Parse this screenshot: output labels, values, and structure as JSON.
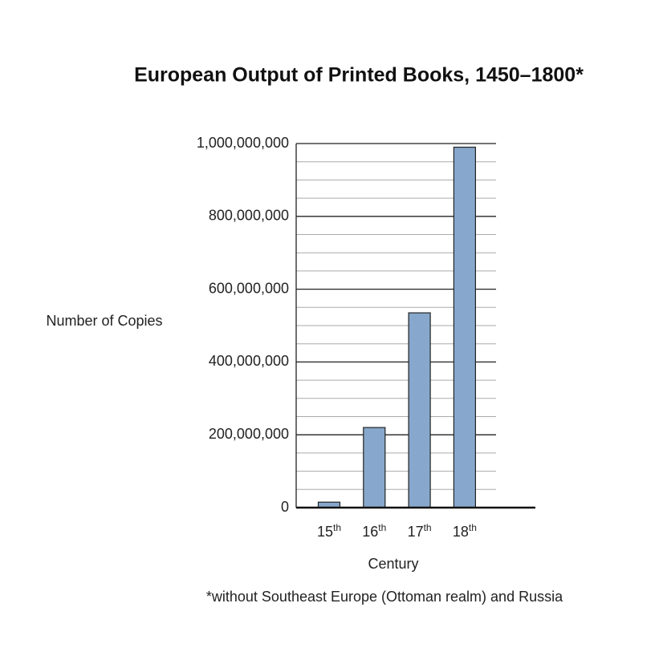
{
  "chart_data": {
    "type": "bar",
    "title": "European Output of Printed Books, 1450–1800*",
    "y_label": "Number of Copies",
    "x_label": "Century",
    "footnote": "*without Southeast Europe (Ottoman realm) and Russia",
    "categories": [
      "15th",
      "16th",
      "17th",
      "18th"
    ],
    "values": [
      15000000,
      220000000,
      535000000,
      990000000
    ],
    "color": "#87a8cc",
    "ylim": [
      0,
      1000000000
    ],
    "yticks": [
      0,
      {
        "value": 200000000,
        "label": "200,000,000"
      },
      {
        "value": 400000000,
        "label": "400,000,000"
      },
      {
        "value": 600000000,
        "label": "600,000,000"
      },
      {
        "value": 800000000,
        "label": "800,000,000"
      },
      {
        "value": 1000000000,
        "label": "1,000,000,000"
      }
    ],
    "minor_yticks": [
      50000000,
      100000000,
      150000000,
      250000000,
      300000000,
      350000000,
      450000000,
      500000000,
      550000000,
      650000000,
      700000000,
      750000000,
      850000000,
      900000000,
      950000000
    ],
    "grid": true
  }
}
